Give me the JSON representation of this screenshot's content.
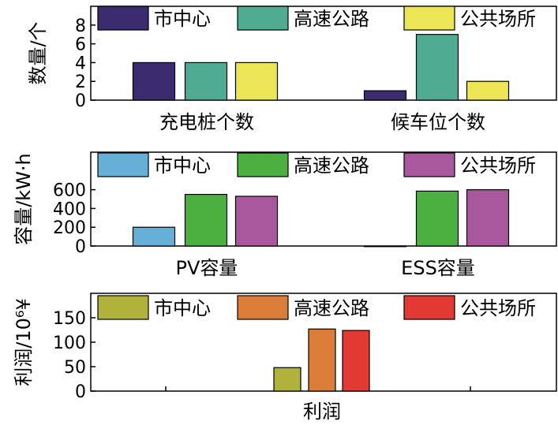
{
  "chart_data": [
    {
      "type": "bar",
      "ylabel": "数量/个",
      "ylim": [
        0,
        10
      ],
      "yticks": [
        0,
        2,
        4,
        6,
        8
      ],
      "categories": [
        "充电桩个数",
        "候车位个数"
      ],
      "series": [
        {
          "name": "市中心",
          "color": "#3d2b6f",
          "values": [
            4,
            1
          ]
        },
        {
          "name": "高速公路",
          "color": "#4fac92",
          "values": [
            4,
            7
          ]
        },
        {
          "name": "公共场所",
          "color": "#ece556",
          "values": [
            4,
            2
          ]
        }
      ],
      "legend": "top"
    },
    {
      "type": "bar",
      "ylabel": "容量/kW·h",
      "ylim": [
        0,
        1000
      ],
      "yticks": [
        0,
        200,
        400,
        600
      ],
      "categories": [
        "PV容量",
        "ESS容量"
      ],
      "series": [
        {
          "name": "市中心",
          "color": "#66afd6",
          "values": [
            200,
            0
          ]
        },
        {
          "name": "高速公路",
          "color": "#4cb041",
          "values": [
            550,
            585
          ]
        },
        {
          "name": "公共场所",
          "color": "#a9589e",
          "values": [
            530,
            600
          ]
        }
      ],
      "legend": "top"
    },
    {
      "type": "bar",
      "ylabel": "利润/10⁶¥",
      "ylim": [
        0,
        200
      ],
      "yticks": [
        0,
        50,
        100,
        150
      ],
      "categories": [
        "利润"
      ],
      "series": [
        {
          "name": "市中心",
          "color": "#b0b23c",
          "values": [
            48
          ]
        },
        {
          "name": "高速公路",
          "color": "#d97d38",
          "values": [
            127
          ]
        },
        {
          "name": "公共场所",
          "color": "#e23a33",
          "values": [
            124
          ]
        }
      ],
      "legend": "top"
    }
  ]
}
